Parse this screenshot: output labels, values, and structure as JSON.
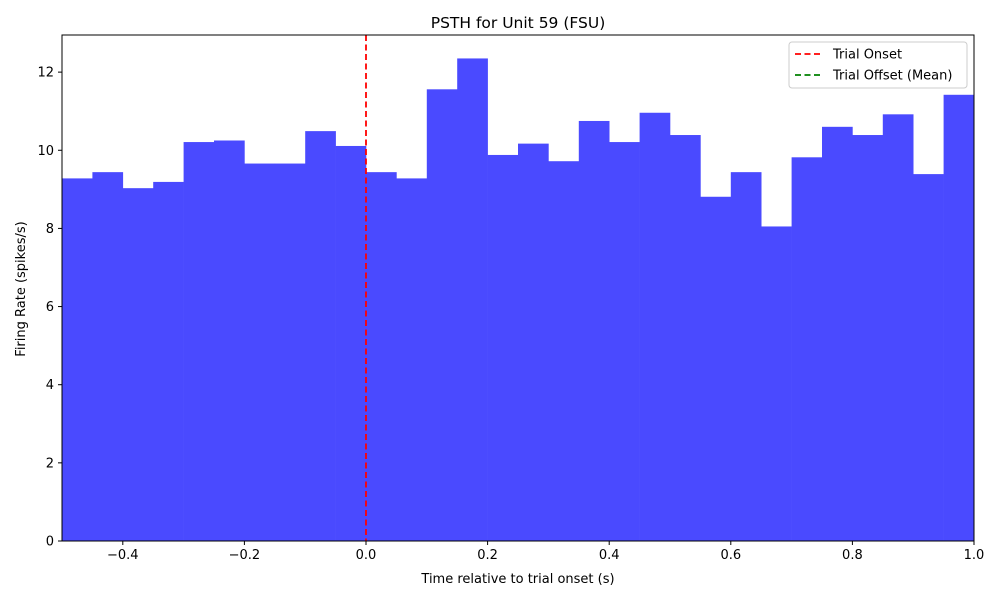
{
  "chart_data": {
    "type": "bar",
    "title": "PSTH for Unit 59 (FSU)",
    "xlabel": "Time relative to trial onset (s)",
    "ylabel": "Firing Rate (spikes/s)",
    "xlim": [
      -0.5,
      1.0
    ],
    "ylim": [
      0,
      12.95
    ],
    "bin_width": 0.05,
    "bin_starts": [
      -0.5,
      -0.45,
      -0.4,
      -0.35,
      -0.3,
      -0.25,
      -0.2,
      -0.15,
      -0.1,
      -0.05,
      0.0,
      0.05,
      0.1,
      0.15,
      0.2,
      0.25,
      0.3,
      0.35,
      0.4,
      0.45,
      0.5,
      0.55,
      0.6,
      0.65,
      0.7,
      0.75,
      0.8,
      0.85,
      0.9,
      0.95
    ],
    "values": [
      9.28,
      9.44,
      9.03,
      9.19,
      10.21,
      10.25,
      9.66,
      9.66,
      10.49,
      10.11,
      9.44,
      9.28,
      11.56,
      12.35,
      9.88,
      10.17,
      9.72,
      10.75,
      10.21,
      10.96,
      10.39,
      8.81,
      9.44,
      8.05,
      9.82,
      10.6,
      10.39,
      10.92,
      9.39,
      11.42
    ],
    "bar_color": "#4a4aff",
    "xticks": [
      -0.4,
      -0.2,
      0.0,
      0.2,
      0.4,
      0.6,
      0.8,
      1.0
    ],
    "xtick_labels": [
      "−0.4",
      "−0.2",
      "0.0",
      "0.2",
      "0.4",
      "0.6",
      "0.8",
      "1.0"
    ],
    "yticks": [
      0,
      2,
      4,
      6,
      8,
      10,
      12
    ],
    "ytick_labels": [
      "0",
      "2",
      "4",
      "6",
      "8",
      "10",
      "12"
    ],
    "vlines": [
      {
        "name": "Trial Onset",
        "x": 0.0,
        "color": "#ff0000",
        "style": "dashed"
      }
    ],
    "legend": {
      "placement": "top-right",
      "entries": [
        {
          "label": "Trial Onset",
          "color": "#ff0000",
          "style": "dashed"
        },
        {
          "label": "Trial Offset (Mean)",
          "color": "#008000",
          "style": "dashed"
        }
      ]
    },
    "grid": false
  }
}
